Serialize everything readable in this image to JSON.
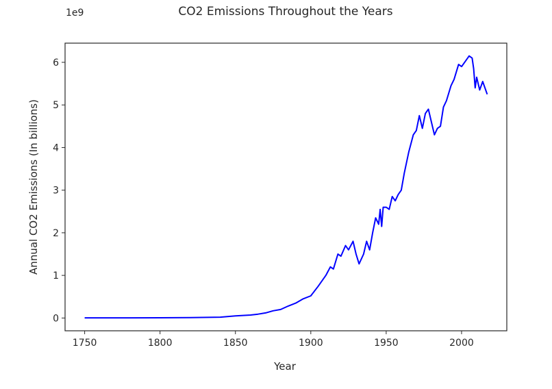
{
  "chart_data": {
    "type": "line",
    "title": "CO2 Emissions Throughout the Years",
    "xlabel": "Year",
    "ylabel": "Annual CO2 Emissions (In billions)",
    "y_offset_label": "1e9",
    "xlim": [
      1737,
      2030
    ],
    "ylim": [
      -0.3,
      6.45
    ],
    "xticks": [
      1750,
      1800,
      1850,
      1900,
      1950,
      2000
    ],
    "yticks": [
      0,
      1,
      2,
      3,
      4,
      5,
      6
    ],
    "grid": false,
    "color": "#0000ff",
    "series": [
      {
        "x": [
          1750,
          1780,
          1800,
          1820,
          1840,
          1850,
          1860,
          1865,
          1870,
          1875,
          1880,
          1885,
          1890,
          1895,
          1900,
          1905,
          1910,
          1913,
          1915,
          1918,
          1920,
          1923,
          1925,
          1928,
          1930,
          1932,
          1935,
          1937,
          1939,
          1941,
          1943,
          1945,
          1946,
          1947,
          1948,
          1950,
          1952,
          1954,
          1956,
          1958,
          1960,
          1962,
          1965,
          1968,
          1970,
          1972,
          1974,
          1976,
          1978,
          1980,
          1982,
          1984,
          1986,
          1988,
          1990,
          1993,
          1995,
          1998,
          2000,
          2003,
          2005,
          2007,
          2008,
          2009,
          2010,
          2012,
          2014,
          2017
        ],
        "y": [
          0.003,
          0.004,
          0.005,
          0.008,
          0.02,
          0.05,
          0.07,
          0.09,
          0.12,
          0.17,
          0.2,
          0.28,
          0.35,
          0.45,
          0.52,
          0.75,
          1.0,
          1.2,
          1.15,
          1.5,
          1.45,
          1.7,
          1.6,
          1.8,
          1.5,
          1.27,
          1.5,
          1.8,
          1.6,
          2.0,
          2.35,
          2.2,
          2.55,
          2.15,
          2.6,
          2.6,
          2.55,
          2.85,
          2.75,
          2.9,
          3.0,
          3.4,
          3.9,
          4.3,
          4.4,
          4.75,
          4.45,
          4.8,
          4.9,
          4.6,
          4.3,
          4.45,
          4.5,
          4.95,
          5.1,
          5.45,
          5.6,
          5.95,
          5.9,
          6.05,
          6.15,
          6.1,
          5.85,
          5.4,
          5.65,
          5.35,
          5.55,
          5.25
        ]
      }
    ]
  }
}
